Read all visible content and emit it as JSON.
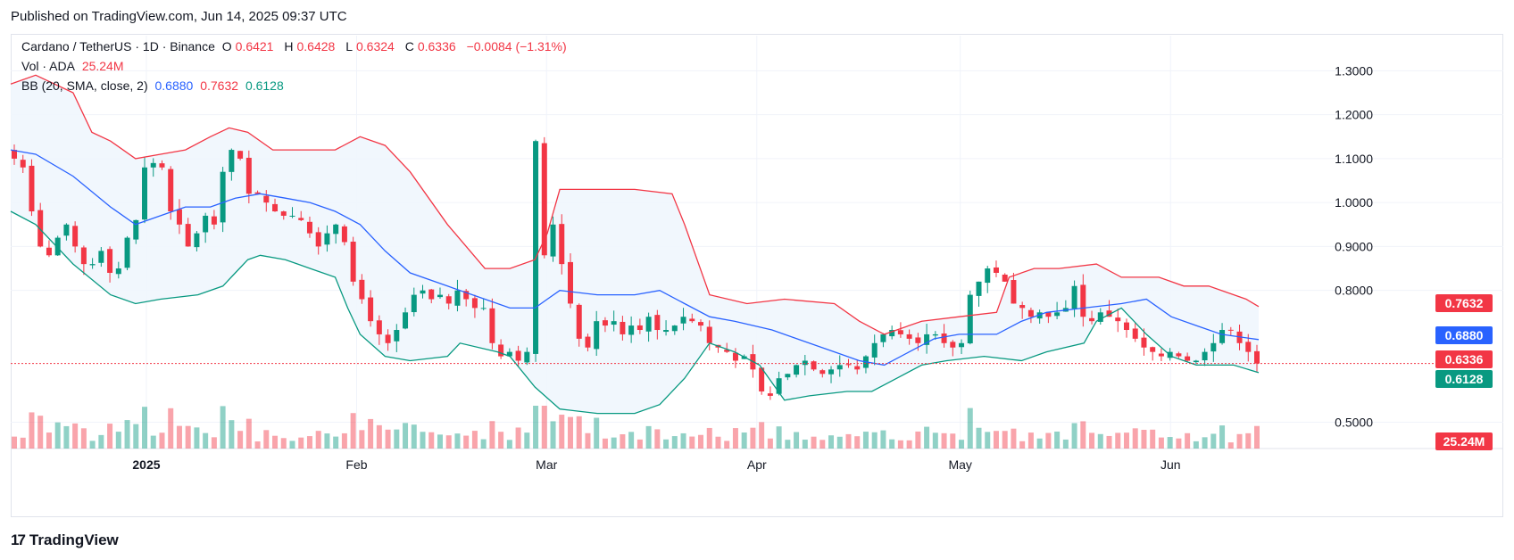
{
  "header": {
    "published": "Published on TradingView.com, Jun 14, 2025 09:37 UTC"
  },
  "legend": {
    "symbol": "Cardano / TetherUS · 1D · Binance",
    "o_label": "O",
    "o_value": "0.6421",
    "h_label": "H",
    "h_value": "0.6428",
    "l_label": "L",
    "l_value": "0.6324",
    "c_label": "C",
    "c_value": "0.6336",
    "change": "−0.0084 (−1.31%)",
    "vol_label": "Vol · ADA",
    "vol_value": "25.24M",
    "bb_label": "BB (20, SMA, close, 2)",
    "bb_basis": "0.6880",
    "bb_upper": "0.7632",
    "bb_lower": "0.6128"
  },
  "badges": {
    "upper": "0.7632",
    "basis": "0.6880",
    "last": "0.6336",
    "lower": "0.6128",
    "volume": "25.24M"
  },
  "footer": {
    "brand": "TradingView",
    "logo_icon": "tradingview-logo-icon"
  },
  "colors": {
    "up": "#089981",
    "down": "#f23645",
    "basis": "#2962ff",
    "upper": "#f23645",
    "lower": "#089981",
    "band_fill": "#f0f6fd"
  },
  "chart_data": {
    "type": "candlestick",
    "ylim": [
      0.44,
      1.38
    ],
    "y_ticks": [
      "0.5000",
      "0.8000",
      "0.9000",
      "1.0000",
      "1.1000",
      "1.2000",
      "1.3000"
    ],
    "x_ticks": [
      {
        "label": "2025",
        "date": "2025-01-01"
      },
      {
        "label": "Feb",
        "date": "2025-02-01"
      },
      {
        "label": "Mar",
        "date": "2025-03-01"
      },
      {
        "label": "Apr",
        "date": "2025-04-01"
      },
      {
        "label": "May",
        "date": "2025-05-01"
      },
      {
        "label": "Jun",
        "date": "2025-06-01"
      }
    ],
    "date_range": [
      "2024-12-12",
      "2025-06-14"
    ],
    "close_path": [
      1.1,
      1.08,
      0.98,
      0.9,
      0.88,
      0.92,
      0.95,
      0.9,
      0.86,
      0.86,
      0.89,
      0.84,
      0.85,
      0.92,
      0.96,
      1.08,
      1.09,
      1.08,
      0.98,
      0.95,
      0.9,
      0.93,
      0.97,
      0.95,
      1.07,
      1.12,
      1.1,
      1.02,
      1.02,
      1.0,
      0.98,
      0.97,
      0.97,
      0.96,
      0.93,
      0.9,
      0.93,
      0.95,
      0.91,
      0.82,
      0.78,
      0.73,
      0.7,
      0.68,
      0.71,
      0.75,
      0.79,
      0.8,
      0.78,
      0.79,
      0.77,
      0.8,
      0.78,
      0.76,
      0.76,
      0.68,
      0.65,
      0.66,
      0.64,
      0.66,
      1.14,
      0.88,
      0.95,
      0.86,
      0.77,
      0.69,
      0.67,
      0.73,
      0.72,
      0.73,
      0.7,
      0.72,
      0.71,
      0.74,
      0.71,
      0.71,
      0.72,
      0.74,
      0.73,
      0.72,
      0.68,
      0.67,
      0.66,
      0.64,
      0.65,
      0.62,
      0.57,
      0.56,
      0.6,
      0.61,
      0.63,
      0.64,
      0.62,
      0.61,
      0.62,
      0.63,
      0.63,
      0.62,
      0.65,
      0.68,
      0.7,
      0.71,
      0.7,
      0.69,
      0.68,
      0.7,
      0.7,
      0.68,
      0.67,
      0.68,
      0.79,
      0.82,
      0.85,
      0.84,
      0.82,
      0.77,
      0.76,
      0.74,
      0.75,
      0.74,
      0.75,
      0.76,
      0.81,
      0.74,
      0.73,
      0.75,
      0.74,
      0.73,
      0.71,
      0.69,
      0.67,
      0.66,
      0.65,
      0.66,
      0.65,
      0.64,
      0.64,
      0.66,
      0.68,
      0.71,
      0.71,
      0.68,
      0.66,
      0.6336
    ],
    "bb_upper_path": [
      [
        0.0,
        1.27
      ],
      [
        0.02,
        1.29
      ],
      [
        0.05,
        1.25
      ],
      [
        0.065,
        1.16
      ],
      [
        0.08,
        1.14
      ],
      [
        0.1,
        1.1
      ],
      [
        0.12,
        1.11
      ],
      [
        0.14,
        1.12
      ],
      [
        0.16,
        1.15
      ],
      [
        0.175,
        1.17
      ],
      [
        0.19,
        1.16
      ],
      [
        0.21,
        1.12
      ],
      [
        0.24,
        1.12
      ],
      [
        0.26,
        1.12
      ],
      [
        0.28,
        1.15
      ],
      [
        0.3,
        1.13
      ],
      [
        0.32,
        1.07
      ],
      [
        0.35,
        0.95
      ],
      [
        0.38,
        0.85
      ],
      [
        0.4,
        0.85
      ],
      [
        0.42,
        0.87
      ],
      [
        0.43,
        0.93
      ],
      [
        0.44,
        1.03
      ],
      [
        0.47,
        1.03
      ],
      [
        0.5,
        1.03
      ],
      [
        0.53,
        1.02
      ],
      [
        0.54,
        0.95
      ],
      [
        0.56,
        0.79
      ],
      [
        0.59,
        0.77
      ],
      [
        0.62,
        0.78
      ],
      [
        0.66,
        0.77
      ],
      [
        0.68,
        0.73
      ],
      [
        0.7,
        0.7
      ],
      [
        0.73,
        0.73
      ],
      [
        0.76,
        0.74
      ],
      [
        0.79,
        0.75
      ],
      [
        0.8,
        0.83
      ],
      [
        0.82,
        0.85
      ],
      [
        0.84,
        0.85
      ],
      [
        0.87,
        0.86
      ],
      [
        0.89,
        0.83
      ],
      [
        0.92,
        0.83
      ],
      [
        0.94,
        0.81
      ],
      [
        0.96,
        0.81
      ],
      [
        0.99,
        0.78
      ],
      [
        1.0,
        0.7632
      ]
    ],
    "bb_basis_path": [
      [
        0.0,
        1.12
      ],
      [
        0.02,
        1.11
      ],
      [
        0.05,
        1.06
      ],
      [
        0.08,
        0.99
      ],
      [
        0.1,
        0.95
      ],
      [
        0.12,
        0.97
      ],
      [
        0.14,
        0.99
      ],
      [
        0.16,
        0.99
      ],
      [
        0.18,
        1.01
      ],
      [
        0.2,
        1.02
      ],
      [
        0.22,
        1.01
      ],
      [
        0.24,
        1.0
      ],
      [
        0.26,
        0.98
      ],
      [
        0.28,
        0.95
      ],
      [
        0.3,
        0.89
      ],
      [
        0.32,
        0.84
      ],
      [
        0.35,
        0.81
      ],
      [
        0.38,
        0.78
      ],
      [
        0.4,
        0.76
      ],
      [
        0.42,
        0.76
      ],
      [
        0.43,
        0.78
      ],
      [
        0.44,
        0.8
      ],
      [
        0.47,
        0.79
      ],
      [
        0.5,
        0.79
      ],
      [
        0.52,
        0.8
      ],
      [
        0.54,
        0.77
      ],
      [
        0.56,
        0.74
      ],
      [
        0.58,
        0.73
      ],
      [
        0.61,
        0.71
      ],
      [
        0.63,
        0.69
      ],
      [
        0.66,
        0.66
      ],
      [
        0.68,
        0.64
      ],
      [
        0.7,
        0.63
      ],
      [
        0.72,
        0.66
      ],
      [
        0.74,
        0.69
      ],
      [
        0.76,
        0.7
      ],
      [
        0.79,
        0.7
      ],
      [
        0.81,
        0.73
      ],
      [
        0.83,
        0.75
      ],
      [
        0.86,
        0.76
      ],
      [
        0.89,
        0.77
      ],
      [
        0.91,
        0.78
      ],
      [
        0.93,
        0.74
      ],
      [
        0.95,
        0.72
      ],
      [
        0.97,
        0.7
      ],
      [
        1.0,
        0.688
      ]
    ],
    "bb_lower_path": [
      [
        0.0,
        0.98
      ],
      [
        0.02,
        0.95
      ],
      [
        0.05,
        0.86
      ],
      [
        0.08,
        0.79
      ],
      [
        0.1,
        0.77
      ],
      [
        0.12,
        0.78
      ],
      [
        0.15,
        0.79
      ],
      [
        0.17,
        0.81
      ],
      [
        0.18,
        0.84
      ],
      [
        0.19,
        0.87
      ],
      [
        0.2,
        0.88
      ],
      [
        0.22,
        0.87
      ],
      [
        0.23,
        0.86
      ],
      [
        0.24,
        0.85
      ],
      [
        0.26,
        0.83
      ],
      [
        0.27,
        0.76
      ],
      [
        0.28,
        0.7
      ],
      [
        0.3,
        0.65
      ],
      [
        0.32,
        0.64
      ],
      [
        0.35,
        0.65
      ],
      [
        0.36,
        0.68
      ],
      [
        0.39,
        0.66
      ],
      [
        0.4,
        0.65
      ],
      [
        0.42,
        0.58
      ],
      [
        0.44,
        0.53
      ],
      [
        0.47,
        0.52
      ],
      [
        0.5,
        0.52
      ],
      [
        0.52,
        0.54
      ],
      [
        0.54,
        0.6
      ],
      [
        0.56,
        0.68
      ],
      [
        0.58,
        0.66
      ],
      [
        0.6,
        0.63
      ],
      [
        0.62,
        0.55
      ],
      [
        0.64,
        0.56
      ],
      [
        0.67,
        0.57
      ],
      [
        0.69,
        0.57
      ],
      [
        0.71,
        0.6
      ],
      [
        0.73,
        0.63
      ],
      [
        0.75,
        0.64
      ],
      [
        0.78,
        0.65
      ],
      [
        0.81,
        0.64
      ],
      [
        0.83,
        0.66
      ],
      [
        0.86,
        0.68
      ],
      [
        0.87,
        0.73
      ],
      [
        0.89,
        0.76
      ],
      [
        0.91,
        0.7
      ],
      [
        0.93,
        0.65
      ],
      [
        0.95,
        0.63
      ],
      [
        0.96,
        0.63
      ],
      [
        0.98,
        0.63
      ],
      [
        1.0,
        0.6128
      ]
    ]
  }
}
